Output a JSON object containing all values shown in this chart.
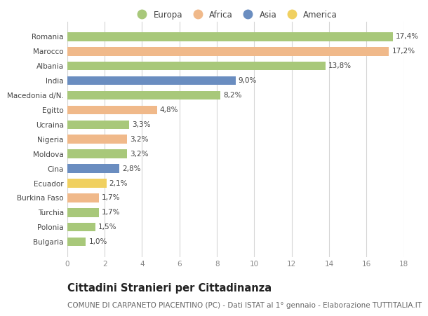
{
  "countries": [
    "Romania",
    "Marocco",
    "Albania",
    "India",
    "Macedonia d/N.",
    "Egitto",
    "Ucraina",
    "Nigeria",
    "Moldova",
    "Cina",
    "Ecuador",
    "Burkina Faso",
    "Turchia",
    "Polonia",
    "Bulgaria"
  ],
  "values": [
    17.4,
    17.2,
    13.8,
    9.0,
    8.2,
    4.8,
    3.3,
    3.2,
    3.2,
    2.8,
    2.1,
    1.7,
    1.7,
    1.5,
    1.0
  ],
  "labels": [
    "17,4%",
    "17,2%",
    "13,8%",
    "9,0%",
    "8,2%",
    "4,8%",
    "3,3%",
    "3,2%",
    "3,2%",
    "2,8%",
    "2,1%",
    "1,7%",
    "1,7%",
    "1,5%",
    "1,0%"
  ],
  "continents": [
    "Europa",
    "Africa",
    "Europa",
    "Asia",
    "Europa",
    "Africa",
    "Europa",
    "Africa",
    "Europa",
    "Asia",
    "America",
    "Africa",
    "Europa",
    "Europa",
    "Europa"
  ],
  "colors": {
    "Europa": "#a8c87a",
    "Africa": "#f0b98a",
    "Asia": "#6a8dc0",
    "America": "#f0d060"
  },
  "legend_order": [
    "Europa",
    "Africa",
    "Asia",
    "America"
  ],
  "title": "Cittadini Stranieri per Cittadinanza",
  "subtitle": "COMUNE DI CARPANETO PIACENTINO (PC) - Dati ISTAT al 1° gennaio - Elaborazione TUTTITALIA.IT",
  "xlim": [
    0,
    18
  ],
  "xticks": [
    0,
    2,
    4,
    6,
    8,
    10,
    12,
    14,
    16,
    18
  ],
  "background_color": "#ffffff",
  "grid_color": "#d5d5d5",
  "bar_height": 0.6,
  "title_fontsize": 10.5,
  "subtitle_fontsize": 7.5,
  "label_fontsize": 7.5,
  "legend_fontsize": 8.5,
  "tick_fontsize": 7.5,
  "text_color": "#444444",
  "tick_color": "#888888"
}
